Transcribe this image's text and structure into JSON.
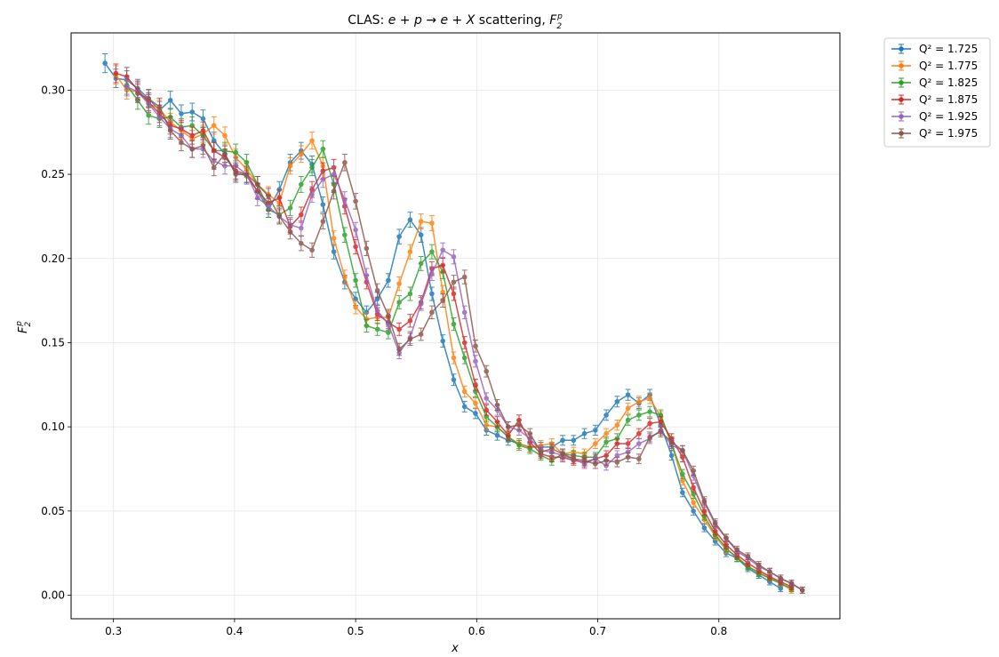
{
  "chart_data": {
    "type": "line",
    "title_prefix": "CLAS: ",
    "title_math": "e + p → e + X",
    "title_middle": " scattering, ",
    "title_symbol": "F",
    "title_sub": "2",
    "title_sup": "p",
    "xlabel": "x",
    "ylabel_symbol": "F",
    "ylabel_sub": "2",
    "ylabel_sup": "p",
    "xlim": [
      0.265,
      0.9
    ],
    "ylim": [
      -0.014,
      0.334
    ],
    "xticks": [
      0.3,
      0.4,
      0.5,
      0.6,
      0.7,
      0.8
    ],
    "xtick_labels": [
      "0.3",
      "0.4",
      "0.5",
      "0.6",
      "0.7",
      "0.8"
    ],
    "yticks": [
      0.0,
      0.05,
      0.1,
      0.15,
      0.2,
      0.25,
      0.3
    ],
    "ytick_labels": [
      "0.00",
      "0.05",
      "0.10",
      "0.15",
      "0.20",
      "0.25",
      "0.30"
    ],
    "grid": true,
    "legend_position": "outside-top-right",
    "series": [
      {
        "name": "Q² = 1.725",
        "color": "#1f77b4",
        "x": [
          0.293,
          0.302,
          0.311,
          0.32,
          0.329,
          0.338,
          0.347,
          0.356,
          0.365,
          0.374,
          0.383,
          0.392,
          0.401,
          0.41,
          0.419,
          0.428,
          0.437,
          0.446,
          0.455,
          0.464,
          0.473,
          0.482,
          0.491,
          0.5,
          0.509,
          0.518,
          0.527,
          0.536,
          0.545,
          0.554,
          0.563,
          0.572,
          0.581,
          0.59,
          0.599,
          0.608,
          0.617,
          0.626,
          0.635,
          0.644,
          0.653,
          0.662,
          0.671,
          0.68,
          0.689,
          0.698,
          0.707,
          0.716,
          0.725,
          0.734,
          0.743,
          0.752,
          0.761,
          0.77,
          0.779,
          0.788,
          0.797,
          0.806,
          0.815,
          0.824,
          0.833,
          0.842,
          0.851
        ],
        "y": [
          0.316,
          0.307,
          0.306,
          0.301,
          0.295,
          0.288,
          0.294,
          0.286,
          0.287,
          0.283,
          0.27,
          0.262,
          0.251,
          0.249,
          0.24,
          0.229,
          0.241,
          0.257,
          0.264,
          0.256,
          0.232,
          0.204,
          0.186,
          0.176,
          0.168,
          0.176,
          0.187,
          0.213,
          0.223,
          0.214,
          0.179,
          0.151,
          0.128,
          0.112,
          0.108,
          0.098,
          0.095,
          0.092,
          0.09,
          0.088,
          0.088,
          0.088,
          0.092,
          0.092,
          0.096,
          0.098,
          0.107,
          0.115,
          0.119,
          0.114,
          0.119,
          0.101,
          0.083,
          0.061,
          0.05,
          0.04,
          0.032,
          0.025,
          0.022,
          0.016,
          0.012,
          0.008,
          0.004
        ]
      },
      {
        "name": "Q² = 1.775",
        "color": "#ff7f0e",
        "x": [
          0.302,
          0.311,
          0.32,
          0.329,
          0.338,
          0.347,
          0.356,
          0.365,
          0.374,
          0.383,
          0.392,
          0.401,
          0.41,
          0.419,
          0.428,
          0.437,
          0.446,
          0.455,
          0.464,
          0.473,
          0.482,
          0.491,
          0.5,
          0.509,
          0.518,
          0.527,
          0.536,
          0.545,
          0.554,
          0.563,
          0.572,
          0.581,
          0.59,
          0.599,
          0.608,
          0.617,
          0.626,
          0.635,
          0.644,
          0.653,
          0.662,
          0.671,
          0.68,
          0.689,
          0.698,
          0.707,
          0.716,
          0.725,
          0.734,
          0.743,
          0.752,
          0.761,
          0.77,
          0.779,
          0.788,
          0.797,
          0.806,
          0.815,
          0.824,
          0.833,
          0.842,
          0.851,
          0.86
        ],
        "y": [
          0.309,
          0.3,
          0.299,
          0.292,
          0.289,
          0.281,
          0.276,
          0.271,
          0.274,
          0.279,
          0.273,
          0.26,
          0.253,
          0.244,
          0.238,
          0.233,
          0.255,
          0.262,
          0.27,
          0.255,
          0.212,
          0.189,
          0.171,
          0.164,
          0.165,
          0.165,
          0.185,
          0.204,
          0.222,
          0.221,
          0.18,
          0.141,
          0.121,
          0.114,
          0.101,
          0.1,
          0.094,
          0.09,
          0.088,
          0.089,
          0.09,
          0.084,
          0.085,
          0.084,
          0.09,
          0.096,
          0.101,
          0.111,
          0.115,
          0.117,
          0.106,
          0.09,
          0.068,
          0.055,
          0.045,
          0.035,
          0.027,
          0.023,
          0.017,
          0.014,
          0.01,
          0.007,
          0.003
        ]
      },
      {
        "name": "Q² = 1.825",
        "color": "#2ca02c",
        "x": [
          0.311,
          0.32,
          0.329,
          0.338,
          0.347,
          0.356,
          0.365,
          0.374,
          0.383,
          0.392,
          0.401,
          0.41,
          0.419,
          0.428,
          0.437,
          0.446,
          0.455,
          0.464,
          0.473,
          0.482,
          0.491,
          0.5,
          0.509,
          0.518,
          0.527,
          0.536,
          0.545,
          0.554,
          0.563,
          0.572,
          0.581,
          0.59,
          0.599,
          0.608,
          0.617,
          0.626,
          0.635,
          0.644,
          0.653,
          0.662,
          0.671,
          0.68,
          0.689,
          0.698,
          0.707,
          0.716,
          0.725,
          0.734,
          0.743,
          0.752,
          0.761,
          0.77,
          0.779,
          0.788,
          0.797,
          0.806,
          0.815,
          0.824,
          0.833,
          0.842,
          0.851,
          0.86
        ],
        "y": [
          0.303,
          0.294,
          0.285,
          0.283,
          0.284,
          0.278,
          0.279,
          0.273,
          0.264,
          0.264,
          0.263,
          0.257,
          0.244,
          0.229,
          0.226,
          0.23,
          0.244,
          0.254,
          0.265,
          0.244,
          0.214,
          0.187,
          0.16,
          0.158,
          0.156,
          0.174,
          0.179,
          0.197,
          0.204,
          0.192,
          0.161,
          0.141,
          0.121,
          0.106,
          0.1,
          0.094,
          0.089,
          0.087,
          0.083,
          0.08,
          0.084,
          0.083,
          0.082,
          0.082,
          0.091,
          0.093,
          0.104,
          0.107,
          0.109,
          0.107,
          0.09,
          0.072,
          0.06,
          0.047,
          0.036,
          0.028,
          0.022,
          0.017,
          0.013,
          0.01,
          0.007,
          0.004
        ]
      },
      {
        "name": "Q² = 1.875",
        "color": "#d62728",
        "x": [
          0.302,
          0.311,
          0.32,
          0.329,
          0.338,
          0.347,
          0.356,
          0.365,
          0.374,
          0.383,
          0.392,
          0.401,
          0.41,
          0.419,
          0.428,
          0.437,
          0.446,
          0.455,
          0.464,
          0.473,
          0.482,
          0.491,
          0.5,
          0.509,
          0.518,
          0.527,
          0.536,
          0.545,
          0.554,
          0.563,
          0.572,
          0.581,
          0.59,
          0.599,
          0.608,
          0.617,
          0.626,
          0.635,
          0.644,
          0.653,
          0.662,
          0.671,
          0.68,
          0.689,
          0.698,
          0.707,
          0.716,
          0.725,
          0.734,
          0.743,
          0.752,
          0.761,
          0.77,
          0.779,
          0.788,
          0.797,
          0.806,
          0.815,
          0.824,
          0.833,
          0.842,
          0.851,
          0.86
        ],
        "y": [
          0.31,
          0.308,
          0.3,
          0.293,
          0.286,
          0.279,
          0.277,
          0.273,
          0.276,
          0.264,
          0.26,
          0.252,
          0.25,
          0.24,
          0.233,
          0.236,
          0.219,
          0.226,
          0.241,
          0.252,
          0.254,
          0.231,
          0.207,
          0.186,
          0.167,
          0.162,
          0.158,
          0.163,
          0.174,
          0.194,
          0.196,
          0.179,
          0.15,
          0.125,
          0.11,
          0.103,
          0.095,
          0.104,
          0.091,
          0.084,
          0.082,
          0.082,
          0.08,
          0.079,
          0.081,
          0.083,
          0.09,
          0.09,
          0.096,
          0.102,
          0.103,
          0.093,
          0.082,
          0.064,
          0.05,
          0.038,
          0.03,
          0.024,
          0.019,
          0.015,
          0.011,
          0.008,
          0.005
        ]
      },
      {
        "name": "Q² = 1.925",
        "color": "#9467bd",
        "x": [
          0.311,
          0.32,
          0.329,
          0.338,
          0.347,
          0.356,
          0.365,
          0.374,
          0.383,
          0.392,
          0.401,
          0.41,
          0.419,
          0.428,
          0.437,
          0.446,
          0.455,
          0.464,
          0.473,
          0.482,
          0.491,
          0.5,
          0.509,
          0.518,
          0.527,
          0.536,
          0.545,
          0.554,
          0.563,
          0.572,
          0.581,
          0.59,
          0.599,
          0.608,
          0.617,
          0.626,
          0.635,
          0.644,
          0.653,
          0.662,
          0.671,
          0.68,
          0.689,
          0.698,
          0.707,
          0.716,
          0.725,
          0.734,
          0.743,
          0.752,
          0.761,
          0.77,
          0.779,
          0.788,
          0.797,
          0.806,
          0.815,
          0.824,
          0.833,
          0.842,
          0.851,
          0.86,
          0.869
        ],
        "y": [
          0.302,
          0.299,
          0.292,
          0.284,
          0.277,
          0.273,
          0.265,
          0.265,
          0.258,
          0.255,
          0.255,
          0.25,
          0.236,
          0.231,
          0.225,
          0.22,
          0.218,
          0.238,
          0.247,
          0.25,
          0.235,
          0.217,
          0.19,
          0.169,
          0.161,
          0.144,
          0.153,
          0.173,
          0.191,
          0.205,
          0.201,
          0.168,
          0.139,
          0.117,
          0.11,
          0.1,
          0.098,
          0.093,
          0.086,
          0.085,
          0.083,
          0.081,
          0.078,
          0.081,
          0.077,
          0.083,
          0.085,
          0.09,
          0.093,
          0.098,
          0.089,
          0.086,
          0.071,
          0.055,
          0.042,
          0.034,
          0.026,
          0.022,
          0.017,
          0.014,
          0.01,
          0.007,
          0.003
        ]
      },
      {
        "name": "Q² = 1.975",
        "color": "#8c564b",
        "x": [
          0.32,
          0.329,
          0.338,
          0.347,
          0.356,
          0.365,
          0.374,
          0.383,
          0.392,
          0.401,
          0.41,
          0.419,
          0.428,
          0.437,
          0.446,
          0.455,
          0.464,
          0.473,
          0.482,
          0.491,
          0.5,
          0.509,
          0.518,
          0.527,
          0.536,
          0.545,
          0.554,
          0.563,
          0.572,
          0.581,
          0.59,
          0.599,
          0.608,
          0.617,
          0.626,
          0.635,
          0.644,
          0.653,
          0.662,
          0.671,
          0.68,
          0.689,
          0.698,
          0.707,
          0.716,
          0.725,
          0.734,
          0.743,
          0.752,
          0.761,
          0.77,
          0.779,
          0.788,
          0.797,
          0.806,
          0.815,
          0.824,
          0.833,
          0.842,
          0.851,
          0.86,
          0.869
        ],
        "y": [
          0.298,
          0.295,
          0.29,
          0.276,
          0.269,
          0.265,
          0.267,
          0.254,
          0.262,
          0.25,
          0.25,
          0.244,
          0.237,
          0.225,
          0.216,
          0.209,
          0.205,
          0.222,
          0.24,
          0.257,
          0.234,
          0.206,
          0.181,
          0.166,
          0.146,
          0.152,
          0.155,
          0.168,
          0.175,
          0.186,
          0.189,
          0.148,
          0.133,
          0.113,
          0.1,
          0.101,
          0.096,
          0.085,
          0.087,
          0.084,
          0.081,
          0.08,
          0.078,
          0.08,
          0.079,
          0.082,
          0.081,
          0.094,
          0.097,
          0.091,
          0.086,
          0.074,
          0.056,
          0.043,
          0.034,
          0.027,
          0.023,
          0.018,
          0.014,
          0.01,
          0.007,
          0.003
        ]
      }
    ]
  }
}
